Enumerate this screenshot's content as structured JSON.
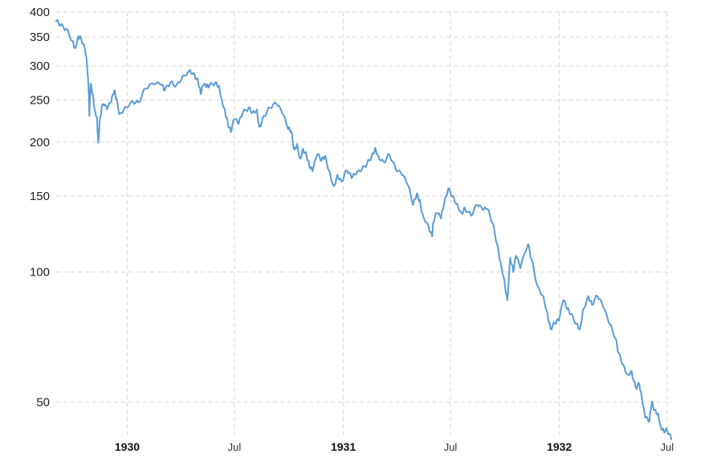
{
  "chart_data": {
    "type": "line",
    "title": "",
    "xlabel": "",
    "ylabel": "",
    "yscale": "log",
    "ylim": [
      42,
      400
    ],
    "xlim": [
      "1929-09-03",
      "1932-07-08"
    ],
    "y_ticks": [
      {
        "value": 400,
        "label": "400"
      },
      {
        "value": 350,
        "label": "350"
      },
      {
        "value": 300,
        "label": "300"
      },
      {
        "value": 250,
        "label": "250"
      },
      {
        "value": 200,
        "label": "200"
      },
      {
        "value": 150,
        "label": "150"
      },
      {
        "value": 100,
        "label": "100"
      },
      {
        "value": 50,
        "label": "50"
      }
    ],
    "x_ticks": [
      {
        "date": "1930-01-01",
        "label": "1930",
        "bold": true
      },
      {
        "date": "1930-07-01",
        "label": "Jul",
        "bold": false
      },
      {
        "date": "1931-01-01",
        "label": "1931",
        "bold": true
      },
      {
        "date": "1931-07-01",
        "label": "Jul",
        "bold": false
      },
      {
        "date": "1932-01-01",
        "label": "1932",
        "bold": true
      },
      {
        "date": "1932-07-01",
        "label": "Jul",
        "bold": false
      }
    ],
    "grid": true,
    "legend": "none",
    "series": [
      {
        "color": "#5b9bd5",
        "points": [
          [
            "1929-09-03",
            381
          ],
          [
            "1929-09-10",
            372
          ],
          [
            "1929-09-20",
            366
          ],
          [
            "1929-10-01",
            343
          ],
          [
            "1929-10-05",
            330
          ],
          [
            "1929-10-10",
            352
          ],
          [
            "1929-10-15",
            348
          ],
          [
            "1929-10-22",
            326
          ],
          [
            "1929-10-25",
            302
          ],
          [
            "1929-10-28",
            261
          ],
          [
            "1929-10-29",
            230
          ],
          [
            "1929-10-31",
            273
          ],
          [
            "1929-11-04",
            258
          ],
          [
            "1929-11-07",
            238
          ],
          [
            "1929-11-11",
            228
          ],
          [
            "1929-11-13",
            199
          ],
          [
            "1929-11-16",
            228
          ],
          [
            "1929-11-21",
            245
          ],
          [
            "1929-11-28",
            238
          ],
          [
            "1929-12-05",
            248
          ],
          [
            "1929-12-10",
            263
          ],
          [
            "1929-12-14",
            252
          ],
          [
            "1929-12-19",
            232
          ],
          [
            "1929-12-28",
            241
          ],
          [
            "1930-01-10",
            249
          ],
          [
            "1930-01-20",
            247
          ],
          [
            "1930-02-01",
            266
          ],
          [
            "1930-02-15",
            272
          ],
          [
            "1930-02-28",
            271
          ],
          [
            "1930-03-05",
            263
          ],
          [
            "1930-03-15",
            275
          ],
          [
            "1930-03-25",
            271
          ],
          [
            "1930-04-05",
            285
          ],
          [
            "1930-04-17",
            294
          ],
          [
            "1930-04-25",
            286
          ],
          [
            "1930-05-01",
            275
          ],
          [
            "1930-05-05",
            258
          ],
          [
            "1930-05-10",
            271
          ],
          [
            "1930-05-15",
            268
          ],
          [
            "1930-05-20",
            270
          ],
          [
            "1930-05-30",
            275
          ],
          [
            "1930-06-05",
            270
          ],
          [
            "1930-06-10",
            250
          ],
          [
            "1930-06-15",
            237
          ],
          [
            "1930-06-20",
            221
          ],
          [
            "1930-06-25",
            211
          ],
          [
            "1930-07-01",
            226
          ],
          [
            "1930-07-08",
            220
          ],
          [
            "1930-07-15",
            233
          ],
          [
            "1930-07-25",
            240
          ],
          [
            "1930-08-01",
            235
          ],
          [
            "1930-08-08",
            238
          ],
          [
            "1930-08-12",
            217
          ],
          [
            "1930-08-20",
            230
          ],
          [
            "1930-08-30",
            240
          ],
          [
            "1930-09-10",
            245
          ],
          [
            "1930-09-20",
            233
          ],
          [
            "1930-09-30",
            214
          ],
          [
            "1930-10-05",
            212
          ],
          [
            "1930-10-10",
            192
          ],
          [
            "1930-10-15",
            198
          ],
          [
            "1930-10-20",
            183
          ],
          [
            "1930-10-25",
            193
          ],
          [
            "1930-10-31",
            186
          ],
          [
            "1930-11-05",
            175
          ],
          [
            "1930-11-10",
            171
          ],
          [
            "1930-11-18",
            187
          ],
          [
            "1930-11-25",
            181
          ],
          [
            "1930-12-01",
            186
          ],
          [
            "1930-12-08",
            172
          ],
          [
            "1930-12-16",
            158
          ],
          [
            "1930-12-22",
            168
          ],
          [
            "1930-12-29",
            162
          ],
          [
            "1931-01-07",
            172
          ],
          [
            "1931-01-15",
            165
          ],
          [
            "1931-01-22",
            168
          ],
          [
            "1931-02-01",
            172
          ],
          [
            "1931-02-10",
            178
          ],
          [
            "1931-02-18",
            186
          ],
          [
            "1931-02-24",
            194
          ],
          [
            "1931-03-01",
            186
          ],
          [
            "1931-03-10",
            180
          ],
          [
            "1931-03-20",
            187
          ],
          [
            "1931-03-31",
            172
          ],
          [
            "1931-04-10",
            168
          ],
          [
            "1931-04-20",
            159
          ],
          [
            "1931-04-29",
            143
          ],
          [
            "1931-05-05",
            152
          ],
          [
            "1931-05-10",
            147
          ],
          [
            "1931-05-15",
            136
          ],
          [
            "1931-05-25",
            128
          ],
          [
            "1931-05-31",
            121
          ],
          [
            "1931-06-02",
            130
          ],
          [
            "1931-06-08",
            137
          ],
          [
            "1931-06-15",
            133
          ],
          [
            "1931-06-20",
            143
          ],
          [
            "1931-06-27",
            156
          ],
          [
            "1931-07-05",
            150
          ],
          [
            "1931-07-12",
            144
          ],
          [
            "1931-07-20",
            137
          ],
          [
            "1931-07-25",
            141
          ],
          [
            "1931-08-05",
            135
          ],
          [
            "1931-08-15",
            143
          ],
          [
            "1931-08-25",
            139
          ],
          [
            "1931-09-01",
            140
          ],
          [
            "1931-09-10",
            130
          ],
          [
            "1931-09-18",
            116
          ],
          [
            "1931-09-24",
            105
          ],
          [
            "1931-09-30",
            96
          ],
          [
            "1931-10-05",
            86
          ],
          [
            "1931-10-10",
            108
          ],
          [
            "1931-10-15",
            100
          ],
          [
            "1931-10-20",
            109
          ],
          [
            "1931-10-27",
            102
          ],
          [
            "1931-11-09",
            116
          ],
          [
            "1931-11-15",
            107
          ],
          [
            "1931-11-25",
            93
          ],
          [
            "1931-12-05",
            88
          ],
          [
            "1931-12-12",
            80
          ],
          [
            "1931-12-17",
            74
          ],
          [
            "1931-12-24",
            76
          ],
          [
            "1931-12-31",
            77
          ],
          [
            "1932-01-08",
            86
          ],
          [
            "1932-01-14",
            82
          ],
          [
            "1932-01-20",
            80
          ],
          [
            "1932-01-30",
            76
          ],
          [
            "1932-02-05",
            74
          ],
          [
            "1932-02-10",
            82
          ],
          [
            "1932-02-19",
            88
          ],
          [
            "1932-02-25",
            84
          ],
          [
            "1932-03-05",
            88
          ],
          [
            "1932-03-15",
            83
          ],
          [
            "1932-03-25",
            76
          ],
          [
            "1932-04-05",
            70
          ],
          [
            "1932-04-10",
            65
          ],
          [
            "1932-04-18",
            61
          ],
          [
            "1932-04-25",
            58
          ],
          [
            "1932-05-02",
            59
          ],
          [
            "1932-05-09",
            54
          ],
          [
            "1932-05-15",
            55
          ],
          [
            "1932-05-20",
            50
          ],
          [
            "1932-05-25",
            46
          ],
          [
            "1932-06-01",
            45
          ],
          [
            "1932-06-05",
            50
          ],
          [
            "1932-06-10",
            48
          ],
          [
            "1932-06-16",
            47
          ],
          [
            "1932-06-20",
            44
          ],
          [
            "1932-06-25",
            43
          ],
          [
            "1932-07-01",
            43
          ],
          [
            "1932-07-08",
            41
          ]
        ]
      }
    ]
  }
}
